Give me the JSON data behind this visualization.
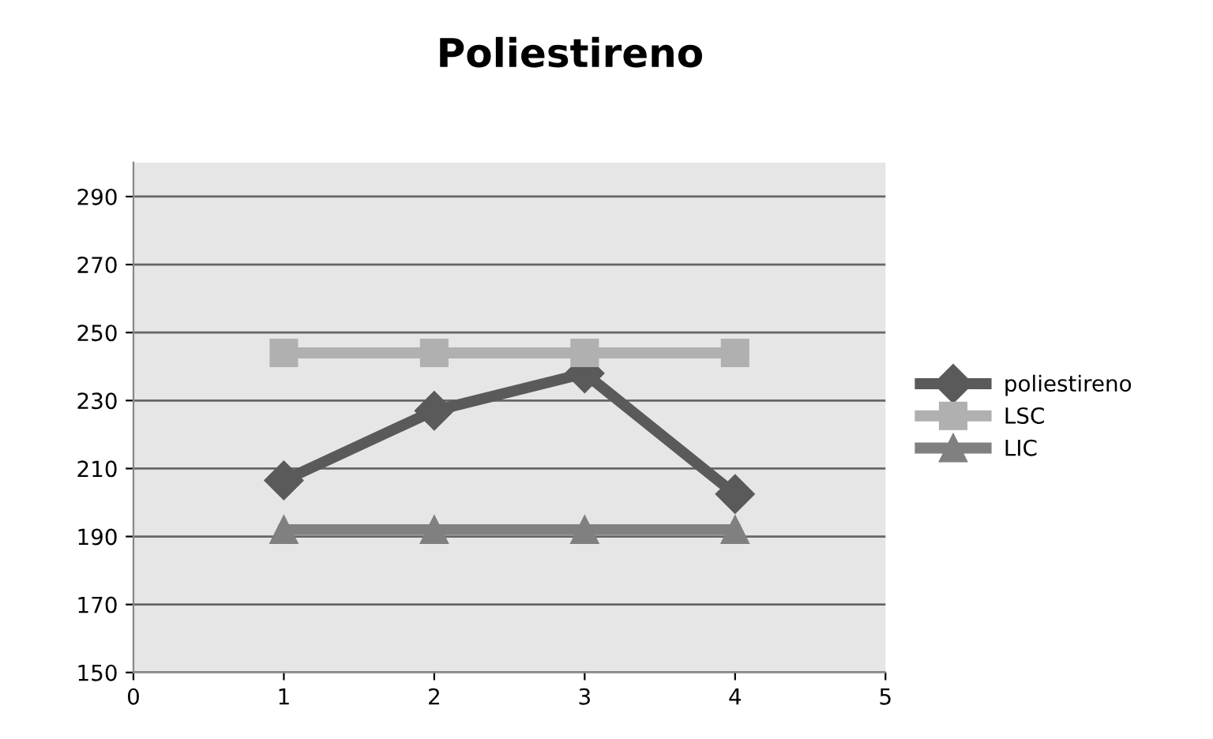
{
  "chart_data": {
    "type": "line",
    "title": "Poliestireno",
    "x": [
      1,
      2,
      3,
      4
    ],
    "series": [
      {
        "name": "poliestireno",
        "color": "#5a5a5a",
        "marker": "diamond",
        "values": [
          206.5,
          227,
          238,
          202.5
        ]
      },
      {
        "name": "LSC",
        "color": "#b0b0b0",
        "marker": "square",
        "values": [
          244,
          244,
          244,
          244
        ]
      },
      {
        "name": "LIC",
        "color": "#808080",
        "marker": "triangle",
        "values": [
          192,
          192,
          192,
          192
        ]
      }
    ],
    "xlim": [
      0,
      5
    ],
    "xticks": [
      0,
      1,
      2,
      3,
      4,
      5
    ],
    "ylim": [
      150,
      300
    ],
    "yticks": [
      150,
      170,
      190,
      210,
      230,
      250,
      270,
      290
    ],
    "grid": "y",
    "legend": "right",
    "line_style": "solid"
  }
}
